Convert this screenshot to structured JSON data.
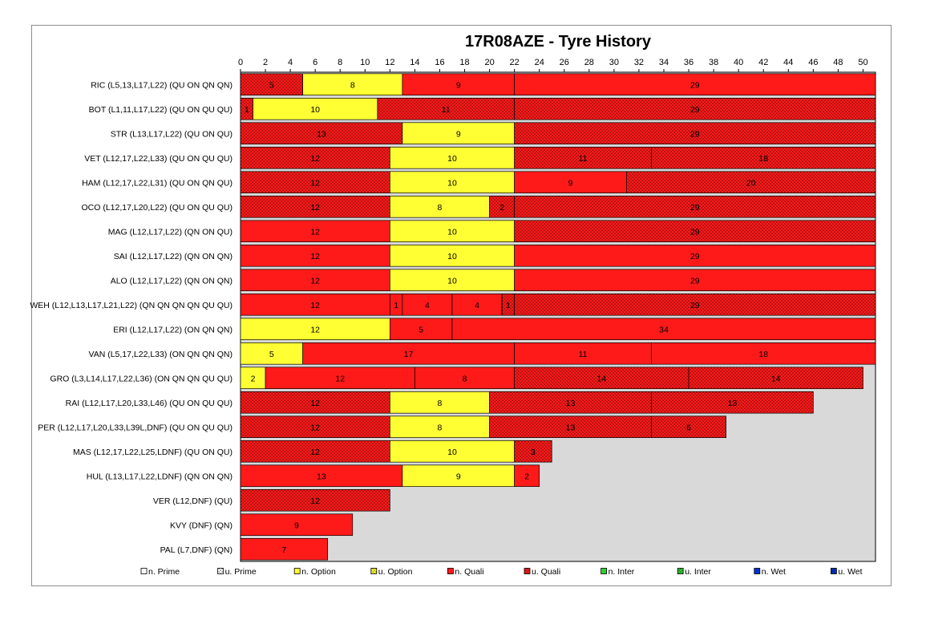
{
  "chart_data": {
    "type": "bar",
    "orientation": "horizontal-stacked",
    "title": "17R08AZE - Tyre History",
    "xlim": [
      0,
      51
    ],
    "x_ticks": [
      0,
      2,
      4,
      6,
      8,
      10,
      12,
      14,
      16,
      18,
      20,
      22,
      24,
      26,
      28,
      30,
      32,
      34,
      36,
      38,
      40,
      42,
      44,
      46,
      48,
      50
    ],
    "legend_position": "bottom",
    "colors": {
      "Prime": "#ffffff",
      "Option": "#ffff33",
      "Quali": "#ff1a1a",
      "Inter": "#33cc33",
      "Wet": "#0033cc",
      "plot_bg": "#d9d9d9"
    },
    "legend": [
      {
        "label": "n. Prime",
        "compound": "Prime",
        "used": false
      },
      {
        "label": "u. Prime",
        "compound": "Prime",
        "used": true
      },
      {
        "label": "n. Option",
        "compound": "Option",
        "used": false
      },
      {
        "label": "u. Option",
        "compound": "Option",
        "used": true
      },
      {
        "label": "n. Quali",
        "compound": "Quali",
        "used": false
      },
      {
        "label": "u. Quali",
        "compound": "Quali",
        "used": true
      },
      {
        "label": "n. Inter",
        "compound": "Inter",
        "used": false
      },
      {
        "label": "u. Inter",
        "compound": "Inter",
        "used": true
      },
      {
        "label": "n. Wet",
        "compound": "Wet",
        "used": false
      },
      {
        "label": "u. Wet",
        "compound": "Wet",
        "used": true
      }
    ],
    "rows": [
      {
        "label": "RIC (L5,13,L17,L22) (QU ON QN QN)",
        "stints": [
          {
            "laps": 5,
            "compound": "Quali",
            "used": true
          },
          {
            "laps": 8,
            "compound": "Option",
            "used": false
          },
          {
            "laps": 9,
            "compound": "Quali",
            "used": false
          },
          {
            "laps": 29,
            "compound": "Quali",
            "used": false
          }
        ]
      },
      {
        "label": "BOT (L1,11,L17,L22) (QU ON QU QU)",
        "stints": [
          {
            "laps": 1,
            "compound": "Quali",
            "used": true
          },
          {
            "laps": 10,
            "compound": "Option",
            "used": false
          },
          {
            "laps": 11,
            "compound": "Quali",
            "used": true
          },
          {
            "laps": 29,
            "compound": "Quali",
            "used": true
          }
        ]
      },
      {
        "label": "STR (L13,L17,L22) (QU ON QU)",
        "stints": [
          {
            "laps": 13,
            "compound": "Quali",
            "used": true
          },
          {
            "laps": 9,
            "compound": "Option",
            "used": false
          },
          {
            "laps": 29,
            "compound": "Quali",
            "used": true
          }
        ]
      },
      {
        "label": "VET (L12,17,L22,L33) (QU ON QU QU)",
        "stints": [
          {
            "laps": 12,
            "compound": "Quali",
            "used": true
          },
          {
            "laps": 10,
            "compound": "Option",
            "used": false
          },
          {
            "laps": 11,
            "compound": "Quali",
            "used": true
          },
          {
            "laps": 18,
            "compound": "Quali",
            "used": true
          }
        ]
      },
      {
        "label": "HAM (L12,17,L22,L31) (QU ON QN QU)",
        "stints": [
          {
            "laps": 12,
            "compound": "Quali",
            "used": true
          },
          {
            "laps": 10,
            "compound": "Option",
            "used": false
          },
          {
            "laps": 9,
            "compound": "Quali",
            "used": false
          },
          {
            "laps": 20,
            "compound": "Quali",
            "used": true
          }
        ]
      },
      {
        "label": "OCO (L12,17,L20,L22) (QU ON QU QU)",
        "stints": [
          {
            "laps": 12,
            "compound": "Quali",
            "used": true
          },
          {
            "laps": 8,
            "compound": "Option",
            "used": false
          },
          {
            "laps": 2,
            "compound": "Quali",
            "used": true
          },
          {
            "laps": 29,
            "compound": "Quali",
            "used": true
          }
        ]
      },
      {
        "label": "MAG (L12,L17,L22) (QN ON QU)",
        "stints": [
          {
            "laps": 12,
            "compound": "Quali",
            "used": false
          },
          {
            "laps": 10,
            "compound": "Option",
            "used": false
          },
          {
            "laps": 29,
            "compound": "Quali",
            "used": true
          }
        ]
      },
      {
        "label": "SAI (L12,L17,L22) (QN ON QN)",
        "stints": [
          {
            "laps": 12,
            "compound": "Quali",
            "used": false
          },
          {
            "laps": 10,
            "compound": "Option",
            "used": false
          },
          {
            "laps": 29,
            "compound": "Quali",
            "used": false
          }
        ]
      },
      {
        "label": "ALO (L12,L17,L22) (QN ON QN)",
        "stints": [
          {
            "laps": 12,
            "compound": "Quali",
            "used": false
          },
          {
            "laps": 10,
            "compound": "Option",
            "used": false
          },
          {
            "laps": 29,
            "compound": "Quali",
            "used": false
          }
        ]
      },
      {
        "label": "WEH (L12,L13,L17,L21,L22) (QN QN QN QN QU QU)",
        "stints": [
          {
            "laps": 12,
            "compound": "Quali",
            "used": false
          },
          {
            "laps": 1,
            "compound": "Quali",
            "used": false
          },
          {
            "laps": 4,
            "compound": "Quali",
            "used": false
          },
          {
            "laps": 4,
            "compound": "Quali",
            "used": false
          },
          {
            "laps": 1,
            "compound": "Quali",
            "used": true
          },
          {
            "laps": 29,
            "compound": "Quali",
            "used": true
          }
        ]
      },
      {
        "label": "ERI (L12,L17,L22) (ON QN QN)",
        "stints": [
          {
            "laps": 12,
            "compound": "Option",
            "used": false
          },
          {
            "laps": 5,
            "compound": "Quali",
            "used": false
          },
          {
            "laps": 34,
            "compound": "Quali",
            "used": false
          }
        ]
      },
      {
        "label": "VAN (L5,17,L22,L33) (ON QN QN QN)",
        "stints": [
          {
            "laps": 5,
            "compound": "Option",
            "used": false
          },
          {
            "laps": 17,
            "compound": "Quali",
            "used": false
          },
          {
            "laps": 11,
            "compound": "Quali",
            "used": false
          },
          {
            "laps": 18,
            "compound": "Quali",
            "used": false
          }
        ]
      },
      {
        "label": "GRO (L3,L14,L17,L22,L36) (ON QN QN QU QU)",
        "stints": [
          {
            "laps": 2,
            "compound": "Option",
            "used": false
          },
          {
            "laps": 12,
            "compound": "Quali",
            "used": false
          },
          {
            "laps": 8,
            "compound": "Quali",
            "used": false
          },
          {
            "laps": 14,
            "compound": "Quali",
            "used": true
          },
          {
            "laps": 14,
            "compound": "Quali",
            "used": true
          }
        ]
      },
      {
        "label": "RAI (L12,L17,L20,L33,L46) (QU ON QU QU)",
        "stints": [
          {
            "laps": 12,
            "compound": "Quali",
            "used": true
          },
          {
            "laps": 8,
            "compound": "Option",
            "used": false
          },
          {
            "laps": 13,
            "compound": "Quali",
            "used": true
          },
          {
            "laps": 13,
            "compound": "Quali",
            "used": true
          }
        ]
      },
      {
        "label": "PER (L12,L17,L20,L33,L39L,DNF) (QU ON QU QU)",
        "stints": [
          {
            "laps": 12,
            "compound": "Quali",
            "used": true
          },
          {
            "laps": 8,
            "compound": "Option",
            "used": false
          },
          {
            "laps": 13,
            "compound": "Quali",
            "used": true
          },
          {
            "laps": 6,
            "compound": "Quali",
            "used": true
          }
        ]
      },
      {
        "label": "MAS (L12,17,L22,L25,LDNF) (QU ON QU)",
        "stints": [
          {
            "laps": 12,
            "compound": "Quali",
            "used": true
          },
          {
            "laps": 10,
            "compound": "Option",
            "used": false
          },
          {
            "laps": 3,
            "compound": "Quali",
            "used": true
          }
        ]
      },
      {
        "label": "HUL (L13,L17,L22,LDNF) (QN ON QN)",
        "stints": [
          {
            "laps": 13,
            "compound": "Quali",
            "used": false
          },
          {
            "laps": 9,
            "compound": "Option",
            "used": false
          },
          {
            "laps": 2,
            "compound": "Quali",
            "used": false
          }
        ]
      },
      {
        "label": "VER (L12,DNF) (QU)",
        "stints": [
          {
            "laps": 12,
            "compound": "Quali",
            "used": true
          }
        ]
      },
      {
        "label": "KVY (DNF) (QN)",
        "stints": [
          {
            "laps": 9,
            "compound": "Quali",
            "used": false
          }
        ]
      },
      {
        "label": "PAL (L7,DNF) (QN)",
        "stints": [
          {
            "laps": 7,
            "compound": "Quali",
            "used": false
          }
        ]
      }
    ]
  }
}
